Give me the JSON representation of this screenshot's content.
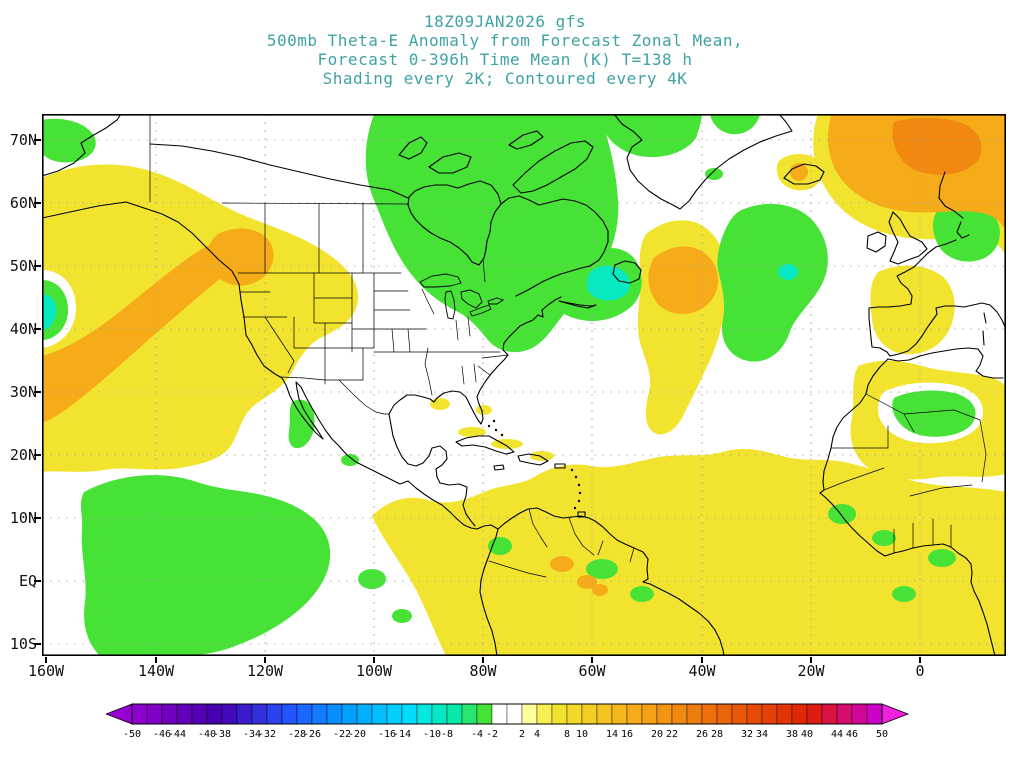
{
  "colors": {
    "background": "#ffffff",
    "title_text": "#3fa3a3",
    "axis_text": "#111111",
    "grid_line": "#aaaaaa",
    "coastline": "#000000",
    "shade_yellow": "#f2e42e",
    "shade_orange": "#f6ab18",
    "shade_orange_deep": "#f18810",
    "shade_green": "#46e236",
    "shade_aqua": "#07e9c0",
    "shade_white": "#ffffff"
  },
  "chart_data": {
    "type": "heatmap",
    "title_lines": [
      "18Z09JAN2026 gfs",
      "500mb Theta-E Anomaly from Forecast Zonal Mean,",
      "Forecast 0-396h Time Mean (K) T=138 h",
      "Shading every 2K; Contoured every 4K"
    ],
    "units": "K",
    "shading_interval": 2,
    "contour_interval": 4,
    "lon_range": [
      "160W",
      "16E"
    ],
    "lat_range": [
      "12S",
      "74N"
    ],
    "x_axis": {
      "ticks": [
        "160W",
        "140W",
        "120W",
        "100W",
        "80W",
        "60W",
        "40W",
        "20W",
        "0"
      ]
    },
    "y_axis": {
      "ticks": [
        "70N",
        "60N",
        "50N",
        "40N",
        "30N",
        "20N",
        "10N",
        "EQ",
        "10S"
      ]
    },
    "colorbar": {
      "min": -50,
      "max": 50,
      "step": 2,
      "labels": [
        "-50",
        "-46",
        "-44",
        "-40",
        "-38",
        "-34",
        "-32",
        "-28",
        "-26",
        "-22",
        "-20",
        "-16",
        "-14",
        "-10",
        "-8",
        "-4",
        "-2",
        "2",
        "4",
        "8",
        "10",
        "14",
        "16",
        "20",
        "22",
        "26",
        "28",
        "32",
        "34",
        "38",
        "40",
        "44",
        "46",
        "50"
      ],
      "palette": [
        "#9b00d3",
        "#8d00cd",
        "#7f00c7",
        "#7100c1",
        "#6300bb",
        "#5500b5",
        "#4700af",
        "#4209bd",
        "#3a1ccd",
        "#322fdd",
        "#2a42ed",
        "#2255fd",
        "#1a68ff",
        "#127bff",
        "#0a8eff",
        "#02a1ff",
        "#00b0ff",
        "#00bfff",
        "#00ceff",
        "#00ddfa",
        "#00e8e0",
        "#03e9c4",
        "#07e9a8",
        "#28e572",
        "#46e236",
        "#ffffff",
        "#ffffff",
        "#ffff9e",
        "#f8ef52",
        "#f2e42e",
        "#f2d928",
        "#f3ce23",
        "#f4c31f",
        "#f5b81c",
        "#f6ac19",
        "#f5a016",
        "#f39413",
        "#f18810",
        "#ef7c0e",
        "#ed700c",
        "#eb640a",
        "#e95808",
        "#e74c07",
        "#e54006",
        "#e33405",
        "#e12804",
        "#de1c14",
        "#da1440",
        "#d60d6c",
        "#d20798",
        "#ce02c4",
        "#ee22dd"
      ]
    },
    "anomaly_features": [
      {
        "region": "Northeast Pacific into British Columbia coast",
        "sign": "positive",
        "peak_K": "+6 to +8",
        "shade": "orange band in broad yellow"
      },
      {
        "region": "Western US northern Rockies and high plains",
        "sign": "positive",
        "peak_K": "+4",
        "shade": "yellow"
      },
      {
        "region": "Central/eastern Canada, Hudson Bay, Great Lakes, Baffin",
        "sign": "negative",
        "peak_K": "-6",
        "shade": "green"
      },
      {
        "region": "Newfoundland / Gulf of St. Lawrence",
        "sign": "negative",
        "peak_K": "-10 to -12",
        "shade": "aqua core in green"
      },
      {
        "region": "Atlantic east of Newfoundland",
        "sign": "positive",
        "peak_K": "+8",
        "shade": "orange core in yellow"
      },
      {
        "region": "Northeast Atlantic south of Iceland",
        "sign": "negative",
        "peak_K": "-6",
        "shade": "green"
      },
      {
        "region": "Near Iceland",
        "sign": "positive",
        "peak_K": "+6",
        "shade": "small orange-core spot"
      },
      {
        "region": "Norwegian Sea / far northeast corner",
        "sign": "positive",
        "peak_K": "+8 to +10",
        "shade": "orange with deep-orange core"
      },
      {
        "region": "Scandinavia / North Sea",
        "sign": "negative",
        "peak_K": "-4",
        "shade": "green"
      },
      {
        "region": "West edge mid-latitudes near 45N",
        "sign": "negative",
        "peak_K": "-10",
        "shade": "aqua core in green"
      },
      {
        "region": "Tropical central Pacific south of 15N",
        "sign": "negative",
        "peak_K": "-6",
        "shade": "green"
      },
      {
        "region": "Tropics from eastern Pacific across Atlantic to Africa",
        "sign": "positive",
        "peak_K": "+4",
        "shade": "yellow with embedded green specks"
      },
      {
        "region": "Northern South America",
        "sign": "positive",
        "peak_K": "+6",
        "shade": "orange specks in yellow"
      },
      {
        "region": "Iberia / western Mediterranean / northwest Africa",
        "sign": "positive",
        "peak_K": "+4",
        "shade": "yellow"
      },
      {
        "region": "Central Sahara (Algeria)",
        "sign": "negative",
        "peak_K": "-4",
        "shade": "green"
      },
      {
        "region": "West African coast near Guinea",
        "sign": "negative",
        "peak_K": "-4",
        "shade": "green patches"
      }
    ]
  }
}
